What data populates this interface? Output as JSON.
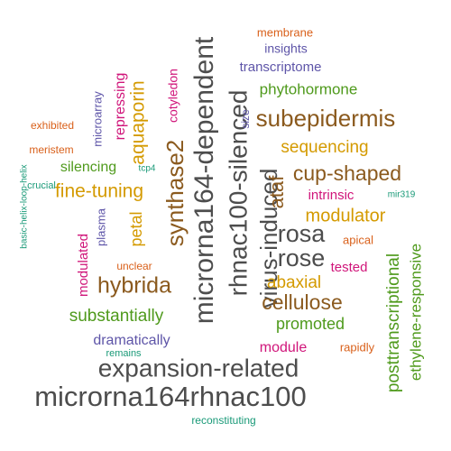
{
  "chart_data": {
    "type": "wordcloud",
    "title": "",
    "colors": {
      "gray": "#4d4d4d",
      "brown": "#8b5a1e",
      "gold": "#d49a00",
      "green": "#4f9a1c",
      "magenta": "#d0157a",
      "purple": "#5e55a8",
      "orange": "#d9601a",
      "teal": "#1a9a78"
    },
    "words": [
      {
        "text": "microrna164rhnac100",
        "color": "gray"
      },
      {
        "text": "expansion-related",
        "color": "gray"
      },
      {
        "text": "microrna164-dependent",
        "color": "gray"
      },
      {
        "text": "rhnac100-silenced",
        "color": "gray"
      },
      {
        "text": "virus-induced",
        "color": "gray"
      },
      {
        "text": "synthase2",
        "color": "brown"
      },
      {
        "text": "subepidermis",
        "color": "brown"
      },
      {
        "text": "hybrida",
        "color": "brown"
      },
      {
        "text": "cup-shaped",
        "color": "brown"
      },
      {
        "text": "cellulose",
        "color": "brown"
      },
      {
        "text": "rosa",
        "color": "gray"
      },
      {
        "text": "rose",
        "color": "gray"
      },
      {
        "text": "ataf",
        "color": "brown"
      },
      {
        "text": "aquaporin",
        "color": "gold"
      },
      {
        "text": "fine-tuning",
        "color": "gold"
      },
      {
        "text": "modulator",
        "color": "gold"
      },
      {
        "text": "sequencing",
        "color": "gold"
      },
      {
        "text": "abaxial",
        "color": "gold"
      },
      {
        "text": "petal",
        "color": "gold"
      },
      {
        "text": "posttranscriptional",
        "color": "green"
      },
      {
        "text": "ethylene-responsive",
        "color": "green"
      },
      {
        "text": "substantially",
        "color": "green"
      },
      {
        "text": "phytohormone",
        "color": "green"
      },
      {
        "text": "promoted",
        "color": "green"
      },
      {
        "text": "silencing",
        "color": "green"
      },
      {
        "text": "repressing",
        "color": "magenta"
      },
      {
        "text": "cotyledon",
        "color": "magenta"
      },
      {
        "text": "intrinsic",
        "color": "magenta"
      },
      {
        "text": "tested",
        "color": "magenta"
      },
      {
        "text": "module",
        "color": "magenta"
      },
      {
        "text": "modulated",
        "color": "magenta"
      },
      {
        "text": "dramatically",
        "color": "purple"
      },
      {
        "text": "transcriptome",
        "color": "purple"
      },
      {
        "text": "insights",
        "color": "purple"
      },
      {
        "text": "microarray",
        "color": "purple"
      },
      {
        "text": "plasma",
        "color": "purple"
      },
      {
        "text": "size",
        "color": "purple"
      },
      {
        "text": "membrane",
        "color": "orange"
      },
      {
        "text": "exhibited",
        "color": "orange"
      },
      {
        "text": "meristem",
        "color": "orange"
      },
      {
        "text": "apical",
        "color": "orange"
      },
      {
        "text": "rapidly",
        "color": "orange"
      },
      {
        "text": "unclear",
        "color": "orange"
      },
      {
        "text": "crucial",
        "color": "teal"
      },
      {
        "text": "basic-helix-loop-helix",
        "color": "teal"
      },
      {
        "text": "mir319",
        "color": "teal"
      },
      {
        "text": "tcp4",
        "color": "teal"
      },
      {
        "text": "remains",
        "color": "teal"
      },
      {
        "text": "reconstituting",
        "color": "teal"
      }
    ]
  }
}
